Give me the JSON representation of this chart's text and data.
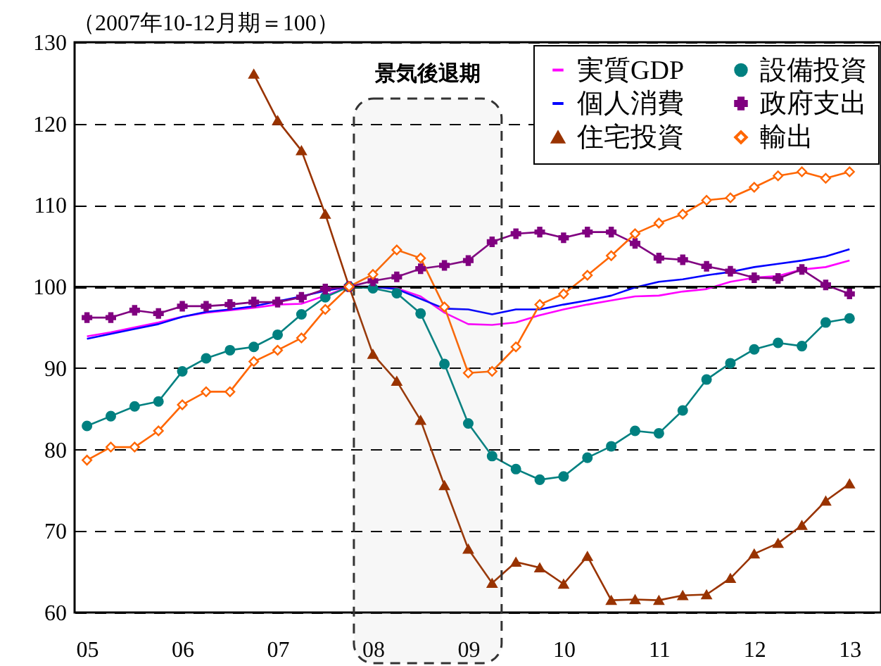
{
  "chart_data": {
    "type": "line",
    "ylabel": "（2007年10-12月期＝100）",
    "x": [
      2005,
      2005.25,
      2005.5,
      2005.75,
      2006,
      2006.25,
      2006.5,
      2006.75,
      2007,
      2007.25,
      2007.5,
      2007.75,
      2008,
      2008.25,
      2008.5,
      2008.75,
      2009,
      2009.25,
      2009.5,
      2009.75,
      2010,
      2010.25,
      2010.5,
      2010.75,
      2011,
      2011.25,
      2011.5,
      2011.75,
      2012,
      2012.25,
      2012.5,
      2012.75,
      2013
    ],
    "xlim": [
      2004.87,
      2013.33
    ],
    "xticks": [
      {
        "value": 2005,
        "label": "05"
      },
      {
        "value": 2006,
        "label": "06"
      },
      {
        "value": 2007,
        "label": "07"
      },
      {
        "value": 2008,
        "label": "08"
      },
      {
        "value": 2009,
        "label": "09"
      },
      {
        "value": 2010,
        "label": "10"
      },
      {
        "value": 2011,
        "label": "11"
      },
      {
        "value": 2012,
        "label": "12"
      },
      {
        "value": 2013,
        "label": "13"
      }
    ],
    "ylim": [
      60,
      130
    ],
    "yticks": [
      60,
      70,
      80,
      90,
      100,
      110,
      120,
      130
    ],
    "grid": "y",
    "legend": "top right",
    "ref_lines": [
      {
        "axis": "y",
        "value": 100
      }
    ],
    "bands": [
      {
        "axis": "x",
        "from": 2007.8,
        "to": 2009.35,
        "label": "景気後退期"
      }
    ],
    "series": [
      {
        "name": "実質GDP",
        "color": "#ff00ff",
        "marker": "none",
        "values": [
          93.9,
          94.4,
          95.0,
          95.6,
          96.3,
          96.8,
          97.1,
          97.4,
          97.8,
          97.9,
          98.9,
          100,
          99.9,
          99.8,
          98.8,
          96.8,
          95.4,
          95.3,
          95.6,
          96.5,
          97.2,
          97.8,
          98.3,
          98.8,
          98.9,
          99.4,
          99.7,
          100.6,
          101.1,
          101.3,
          102.1,
          102.4,
          103.2
        ]
      },
      {
        "name": "個人消費",
        "color": "#0000ff",
        "marker": "none",
        "values": [
          93.6,
          94.2,
          94.8,
          95.4,
          96.3,
          96.9,
          97.2,
          97.6,
          98.2,
          98.8,
          99.5,
          100,
          100,
          99.7,
          98.5,
          97.3,
          97.2,
          96.6,
          97.2,
          97.2,
          97.8,
          98.3,
          98.9,
          99.9,
          100.6,
          100.9,
          101.4,
          101.8,
          102.4,
          102.8,
          103.2,
          103.7,
          104.6
        ]
      },
      {
        "name": "住宅投資",
        "color": "#993300",
        "marker": "triangle",
        "values": [
          null,
          null,
          null,
          null,
          null,
          null,
          null,
          126.1,
          120.4,
          116.7,
          108.9,
          100,
          91.7,
          88.4,
          83.6,
          75.6,
          67.8,
          63.6,
          66.2,
          65.5,
          63.5,
          66.9,
          61.5,
          61.6,
          61.5,
          62.1,
          62.2,
          64.2,
          67.2,
          68.5,
          70.7,
          73.7,
          75.8
        ]
      },
      {
        "name": "設備投資",
        "color": "#008080",
        "marker": "circle",
        "values": [
          82.9,
          84.1,
          85.3,
          85.9,
          89.6,
          91.2,
          92.2,
          92.6,
          94.1,
          96.6,
          98.7,
          100,
          99.8,
          99.2,
          96.7,
          90.5,
          83.2,
          79.2,
          77.6,
          76.3,
          76.7,
          79.0,
          80.4,
          82.3,
          82.0,
          84.8,
          88.6,
          90.6,
          92.3,
          93.1,
          92.7,
          95.6,
          96.1
        ]
      },
      {
        "name": "政府支出",
        "color": "#800080",
        "marker": "cross",
        "values": [
          96.2,
          96.2,
          97.1,
          96.7,
          97.6,
          97.6,
          97.8,
          98.1,
          98.1,
          98.7,
          99.7,
          100,
          100.7,
          101.2,
          102.2,
          102.6,
          103.2,
          105.5,
          106.5,
          106.7,
          106.0,
          106.7,
          106.7,
          105.3,
          103.5,
          103.3,
          102.5,
          101.9,
          101.1,
          101.0,
          102.1,
          100.2,
          99.1
        ]
      },
      {
        "name": "輸出",
        "color": "#ff6600",
        "marker": "diamond",
        "values": [
          78.7,
          80.3,
          80.3,
          82.3,
          85.5,
          87.1,
          87.1,
          90.8,
          92.2,
          93.7,
          97.2,
          100,
          101.5,
          104.5,
          103.5,
          97.5,
          89.4,
          89.6,
          92.6,
          97.8,
          99.1,
          101.4,
          103.8,
          106.5,
          107.8,
          108.9,
          110.6,
          110.9,
          112.2,
          113.6,
          114.1,
          113.3,
          114.1
        ]
      }
    ]
  }
}
